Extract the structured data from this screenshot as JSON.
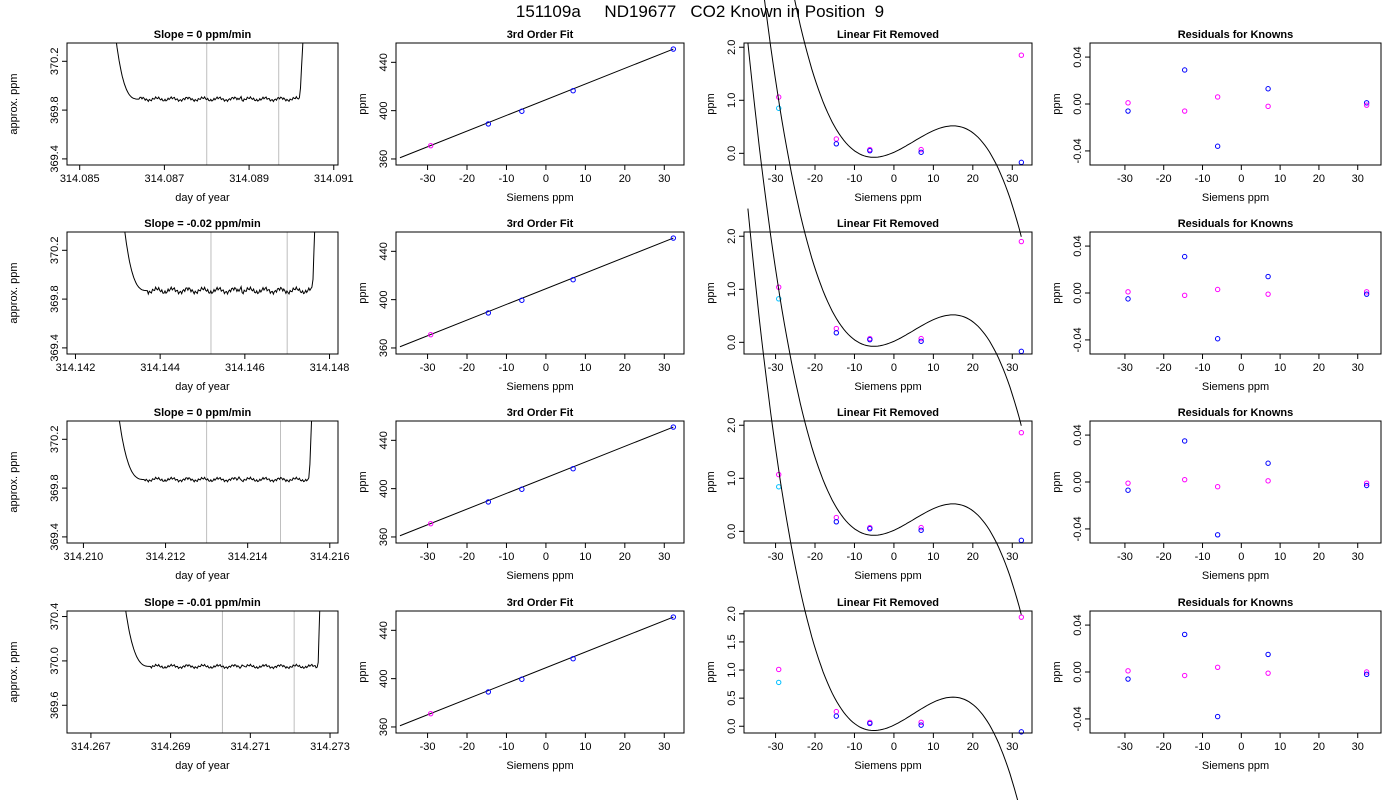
{
  "header": {
    "title": "151109a     ND19677   CO2 Known in Position  9"
  },
  "labels": {
    "trace_title_prefix": "Slope = ",
    "trace_title_suffix": "  ppm/min",
    "trace_xlabel": "day of year",
    "trace_ylabel": "approx. ppm",
    "fit_title": "3rd Order Fit",
    "fit_xlabel": "Siemens ppm",
    "fit_ylabel": "ppm",
    "lin_title": "Linear Fit Removed",
    "lin_xlabel": "Siemens ppm",
    "lin_ylabel": "ppm",
    "res_title": "Residuals for Knowns",
    "res_xlabel": "Siemens ppm",
    "res_ylabel": "ppm"
  },
  "colors": {
    "line": "#000000",
    "vline": "#bebebe",
    "blue": "#0000ff",
    "magenta": "#ff00ff",
    "cyan": "#00bfff"
  },
  "chart_data": [
    {
      "row": 0,
      "type": "line",
      "slope": "0",
      "xlim": [
        314.0847,
        314.0911
      ],
      "ylim": [
        369.35,
        370.35
      ],
      "xticks": [
        "314.085",
        "314.087",
        "314.089",
        "314.091"
      ],
      "yticks": [
        "369.4",
        "369.8",
        "370.2"
      ],
      "x_from": 314.0847,
      "x_to": 314.0911,
      "step_start": 314.0858,
      "step_end": 314.0902,
      "x_plateau_start": 314.0864,
      "plateau_level": 369.89,
      "plateau_noise": 0.02,
      "bump_x": 314.0888,
      "vlines": [
        314.088,
        314.0897
      ]
    },
    {
      "row": 1,
      "type": "line",
      "slope": "-0.02",
      "xlim": [
        314.1418,
        314.1482
      ],
      "ylim": [
        369.35,
        370.35
      ],
      "xticks": [
        "314.142",
        "314.144",
        "314.146",
        "314.148"
      ],
      "yticks": [
        "369.4",
        "369.8",
        "370.2"
      ],
      "x_from": 314.1418,
      "x_to": 314.1482,
      "step_start": 314.1431,
      "step_end": 314.1476,
      "x_plateau_start": 314.1437,
      "plateau_level": 369.87,
      "plateau_noise": 0.03,
      "bump_x": 314.1459,
      "vlines": [
        314.1452,
        314.147
      ]
    },
    {
      "row": 2,
      "type": "line",
      "slope": "0",
      "xlim": [
        314.2096,
        314.2162
      ],
      "ylim": [
        369.35,
        370.35
      ],
      "xticks": [
        "314.210",
        "314.212",
        "314.214",
        "314.216"
      ],
      "yticks": [
        "369.4",
        "369.8",
        "370.2"
      ],
      "x_from": 314.2096,
      "x_to": 314.2162,
      "step_start": 314.2108,
      "step_end": 314.2155,
      "x_plateau_start": 314.2115,
      "plateau_level": 369.87,
      "plateau_noise": 0.02,
      "bump_x": 314.2138,
      "vlines": [
        314.213,
        314.2148
      ]
    },
    {
      "row": 3,
      "type": "line",
      "slope": "-0.01",
      "xlim": [
        314.2664,
        314.2732
      ],
      "ylim": [
        369.35,
        370.45
      ],
      "xticks": [
        "314.267",
        "314.269",
        "314.271",
        "314.273"
      ],
      "yticks": [
        "369.6",
        "370.0",
        "370.4"
      ],
      "x_from": 314.2664,
      "x_to": 314.2732,
      "step_start": 314.2678,
      "step_end": 314.2727,
      "x_plateau_start": 314.2685,
      "plateau_level": 369.95,
      "plateau_noise": 0.02,
      "bump_x": 314.2708,
      "vlines": [
        314.2703,
        314.2721
      ]
    },
    {
      "row": 0,
      "type": "scatter_fit",
      "xlim": [
        -38,
        35
      ],
      "ylim": [
        355,
        456
      ],
      "xticks": [
        -30,
        -20,
        -10,
        0,
        10,
        20,
        30
      ],
      "yticks": [
        360,
        400,
        440
      ],
      "fit_line": {
        "x": [
          -37,
          32.3
        ],
        "y": [
          361,
          451
        ]
      },
      "points": [
        {
          "x": -29.2,
          "y": 371,
          "color": "magenta"
        },
        {
          "x": -14.6,
          "y": 389,
          "color": "blue"
        },
        {
          "x": -6.1,
          "y": 399.5,
          "color": "blue"
        },
        {
          "x": 6.9,
          "y": 416.5,
          "color": "blue"
        },
        {
          "x": 32.3,
          "y": 451,
          "color": "blue"
        }
      ]
    },
    {
      "row": 1,
      "type": "scatter_fit",
      "xlim": [
        -38,
        35
      ],
      "ylim": [
        355,
        456
      ],
      "xticks": [
        -30,
        -20,
        -10,
        0,
        10,
        20,
        30
      ],
      "yticks": [
        360,
        400,
        440
      ],
      "fit_line": {
        "x": [
          -37,
          32.3
        ],
        "y": [
          361,
          451
        ]
      },
      "points": [
        {
          "x": -29.2,
          "y": 371,
          "color": "magenta"
        },
        {
          "x": -14.6,
          "y": 389,
          "color": "blue"
        },
        {
          "x": -6.1,
          "y": 399.5,
          "color": "blue"
        },
        {
          "x": 6.9,
          "y": 416.5,
          "color": "blue"
        },
        {
          "x": 32.3,
          "y": 451,
          "color": "blue"
        }
      ]
    },
    {
      "row": 2,
      "type": "scatter_fit",
      "xlim": [
        -38,
        35
      ],
      "ylim": [
        355,
        456
      ],
      "xticks": [
        -30,
        -20,
        -10,
        0,
        10,
        20,
        30
      ],
      "yticks": [
        360,
        400,
        440
      ],
      "fit_line": {
        "x": [
          -37,
          32.3
        ],
        "y": [
          361,
          451
        ]
      },
      "points": [
        {
          "x": -29.2,
          "y": 371,
          "color": "magenta"
        },
        {
          "x": -14.6,
          "y": 389,
          "color": "blue"
        },
        {
          "x": -6.1,
          "y": 399.5,
          "color": "blue"
        },
        {
          "x": 6.9,
          "y": 416.5,
          "color": "blue"
        },
        {
          "x": 32.3,
          "y": 451,
          "color": "blue"
        }
      ]
    },
    {
      "row": 3,
      "type": "scatter_fit",
      "xlim": [
        -38,
        35
      ],
      "ylim": [
        355,
        456
      ],
      "xticks": [
        -30,
        -20,
        -10,
        0,
        10,
        20,
        30
      ],
      "yticks": [
        360,
        400,
        440
      ],
      "fit_line": {
        "x": [
          -37,
          32.3
        ],
        "y": [
          361,
          451
        ]
      },
      "points": [
        {
          "x": -29.2,
          "y": 371,
          "color": "magenta"
        },
        {
          "x": -14.6,
          "y": 389,
          "color": "blue"
        },
        {
          "x": -6.1,
          "y": 399.5,
          "color": "blue"
        },
        {
          "x": 6.9,
          "y": 416.5,
          "color": "blue"
        },
        {
          "x": 32.3,
          "y": 451,
          "color": "blue"
        }
      ]
    },
    {
      "row": 0,
      "type": "scatter_curve",
      "xlim": [
        -38,
        35
      ],
      "ylim": [
        -0.22,
        2.08
      ],
      "xticks": [
        -30,
        -20,
        -10,
        0,
        10,
        20,
        30
      ],
      "yticks": [
        0.0,
        1.0,
        2.0
      ],
      "curve_fn": "-0.000147x^3 + 0.00218x^2 + 0.0336x + 0.0196",
      "curve_x": [
        -37,
        32.3
      ],
      "curve_coef": [
        -0.000147,
        0.00218,
        0.0336,
        0.0196
      ],
      "points": [
        {
          "x": -29.2,
          "y": 1.06,
          "color": "magenta"
        },
        {
          "x": -29.2,
          "y": 0.85,
          "color": "cyan"
        },
        {
          "x": -14.6,
          "y": 0.27,
          "color": "magenta"
        },
        {
          "x": -14.6,
          "y": 0.18,
          "color": "blue"
        },
        {
          "x": -6.1,
          "y": 0.07,
          "color": "magenta"
        },
        {
          "x": -6.1,
          "y": 0.05,
          "color": "blue"
        },
        {
          "x": 6.9,
          "y": 0.07,
          "color": "magenta"
        },
        {
          "x": 6.9,
          "y": 0.02,
          "color": "blue"
        },
        {
          "x": 32.3,
          "y": 1.85,
          "color": "magenta"
        },
        {
          "x": 32.3,
          "y": -0.17,
          "color": "blue"
        }
      ]
    },
    {
      "row": 1,
      "type": "scatter_curve",
      "xlim": [
        -38,
        35
      ],
      "ylim": [
        -0.22,
        2.08
      ],
      "xticks": [
        -30,
        -20,
        -10,
        0,
        10,
        20,
        30
      ],
      "yticks": [
        0.0,
        1.0,
        2.0
      ],
      "curve_fn": "-0.000147x^3 + 0.00218x^2 + 0.0336x + 0.0196",
      "curve_x": [
        -37,
        32.3
      ],
      "curve_coef": [
        -0.000147,
        0.00218,
        0.0336,
        0.0196
      ],
      "points": [
        {
          "x": -29.2,
          "y": 1.04,
          "color": "magenta"
        },
        {
          "x": -29.2,
          "y": 0.82,
          "color": "cyan"
        },
        {
          "x": -14.6,
          "y": 0.26,
          "color": "magenta"
        },
        {
          "x": -14.6,
          "y": 0.18,
          "color": "blue"
        },
        {
          "x": -6.1,
          "y": 0.07,
          "color": "magenta"
        },
        {
          "x": -6.1,
          "y": 0.05,
          "color": "blue"
        },
        {
          "x": 6.9,
          "y": 0.07,
          "color": "magenta"
        },
        {
          "x": 6.9,
          "y": 0.02,
          "color": "blue"
        },
        {
          "x": 32.3,
          "y": 1.9,
          "color": "magenta"
        },
        {
          "x": 32.3,
          "y": -0.17,
          "color": "blue"
        }
      ]
    },
    {
      "row": 2,
      "type": "scatter_curve",
      "xlim": [
        -38,
        35
      ],
      "ylim": [
        -0.22,
        2.08
      ],
      "xticks": [
        -30,
        -20,
        -10,
        0,
        10,
        20,
        30
      ],
      "yticks": [
        0.0,
        1.0,
        2.0
      ],
      "curve_fn": "-0.000147x^3 + 0.00218x^2 + 0.0336x + 0.0196",
      "curve_x": [
        -37,
        32.3
      ],
      "curve_coef": [
        -0.000147,
        0.00218,
        0.0336,
        0.0196
      ],
      "points": [
        {
          "x": -29.2,
          "y": 1.07,
          "color": "magenta"
        },
        {
          "x": -29.2,
          "y": 0.84,
          "color": "cyan"
        },
        {
          "x": -14.6,
          "y": 0.26,
          "color": "magenta"
        },
        {
          "x": -14.6,
          "y": 0.18,
          "color": "blue"
        },
        {
          "x": -6.1,
          "y": 0.07,
          "color": "magenta"
        },
        {
          "x": -6.1,
          "y": 0.05,
          "color": "blue"
        },
        {
          "x": 6.9,
          "y": 0.07,
          "color": "magenta"
        },
        {
          "x": 6.9,
          "y": 0.02,
          "color": "blue"
        },
        {
          "x": 32.3,
          "y": 1.86,
          "color": "magenta"
        },
        {
          "x": 32.3,
          "y": -0.17,
          "color": "blue"
        }
      ]
    },
    {
      "row": 3,
      "type": "scatter_curve",
      "xlim": [
        -38,
        35
      ],
      "ylim": [
        -0.12,
        2.05
      ],
      "xticks": [
        -30,
        -20,
        -10,
        0,
        10,
        20,
        30
      ],
      "yticks": [
        0.0,
        0.5,
        1.0,
        1.5,
        2.0
      ],
      "curve_fn": "-0.000147x^3 + 0.00218x^2 + 0.0336x + 0.0196",
      "curve_x": [
        -37,
        32.3
      ],
      "curve_coef": [
        -0.000147,
        0.00218,
        0.0336,
        0.0196
      ],
      "points": [
        {
          "x": -29.2,
          "y": 1.01,
          "color": "magenta"
        },
        {
          "x": -29.2,
          "y": 0.78,
          "color": "cyan"
        },
        {
          "x": -14.6,
          "y": 0.26,
          "color": "magenta"
        },
        {
          "x": -14.6,
          "y": 0.18,
          "color": "blue"
        },
        {
          "x": -6.1,
          "y": 0.07,
          "color": "magenta"
        },
        {
          "x": -6.1,
          "y": 0.05,
          "color": "blue"
        },
        {
          "x": 6.9,
          "y": 0.07,
          "color": "magenta"
        },
        {
          "x": 6.9,
          "y": 0.02,
          "color": "blue"
        },
        {
          "x": 32.3,
          "y": 1.94,
          "color": "magenta"
        },
        {
          "x": 32.3,
          "y": -0.1,
          "color": "blue"
        }
      ]
    },
    {
      "row": 0,
      "type": "scatter",
      "xlim": [
        -39,
        36
      ],
      "ylim": [
        -0.052,
        0.052
      ],
      "xticks": [
        -30,
        -20,
        -10,
        0,
        10,
        20,
        30
      ],
      "yticks": [
        "-0.04",
        "0.00",
        "0.04"
      ],
      "points": [
        {
          "x": -29.2,
          "y": 0.001,
          "color": "magenta"
        },
        {
          "x": -29.2,
          "y": -0.006,
          "color": "blue"
        },
        {
          "x": -14.6,
          "y": 0.029,
          "color": "blue"
        },
        {
          "x": -14.6,
          "y": -0.006,
          "color": "magenta"
        },
        {
          "x": -6.1,
          "y": 0.006,
          "color": "magenta"
        },
        {
          "x": -6.1,
          "y": -0.036,
          "color": "blue"
        },
        {
          "x": 6.9,
          "y": 0.013,
          "color": "blue"
        },
        {
          "x": 6.9,
          "y": -0.002,
          "color": "magenta"
        },
        {
          "x": 32.3,
          "y": 0.001,
          "color": "blue"
        },
        {
          "x": 32.3,
          "y": -0.001,
          "color": "magenta"
        }
      ]
    },
    {
      "row": 1,
      "type": "scatter",
      "xlim": [
        -39,
        36
      ],
      "ylim": [
        -0.052,
        0.052
      ],
      "xticks": [
        -30,
        -20,
        -10,
        0,
        10,
        20,
        30
      ],
      "yticks": [
        "-0.04",
        "0.00",
        "0.04"
      ],
      "points": [
        {
          "x": -29.2,
          "y": 0.001,
          "color": "magenta"
        },
        {
          "x": -29.2,
          "y": -0.005,
          "color": "blue"
        },
        {
          "x": -14.6,
          "y": 0.031,
          "color": "blue"
        },
        {
          "x": -14.6,
          "y": -0.002,
          "color": "magenta"
        },
        {
          "x": -6.1,
          "y": 0.003,
          "color": "magenta"
        },
        {
          "x": -6.1,
          "y": -0.039,
          "color": "blue"
        },
        {
          "x": 6.9,
          "y": 0.014,
          "color": "blue"
        },
        {
          "x": 6.9,
          "y": -0.001,
          "color": "magenta"
        },
        {
          "x": 32.3,
          "y": 0.001,
          "color": "magenta"
        },
        {
          "x": 32.3,
          "y": -0.001,
          "color": "blue"
        }
      ]
    },
    {
      "row": 2,
      "type": "scatter",
      "xlim": [
        -39,
        36
      ],
      "ylim": [
        -0.052,
        0.052
      ],
      "xticks": [
        -30,
        -20,
        -10,
        0,
        10,
        20,
        30
      ],
      "yticks": [
        "-0.04",
        "0.00",
        "0.04"
      ],
      "points": [
        {
          "x": -29.2,
          "y": -0.001,
          "color": "magenta"
        },
        {
          "x": -29.2,
          "y": -0.007,
          "color": "blue"
        },
        {
          "x": -14.6,
          "y": 0.035,
          "color": "blue"
        },
        {
          "x": -14.6,
          "y": 0.002,
          "color": "magenta"
        },
        {
          "x": -6.1,
          "y": -0.004,
          "color": "magenta"
        },
        {
          "x": -6.1,
          "y": -0.045,
          "color": "blue"
        },
        {
          "x": 6.9,
          "y": 0.016,
          "color": "blue"
        },
        {
          "x": 6.9,
          "y": 0.001,
          "color": "magenta"
        },
        {
          "x": 32.3,
          "y": -0.001,
          "color": "magenta"
        },
        {
          "x": 32.3,
          "y": -0.003,
          "color": "blue"
        }
      ]
    },
    {
      "row": 3,
      "type": "scatter",
      "xlim": [
        -39,
        36
      ],
      "ylim": [
        -0.052,
        0.052
      ],
      "xticks": [
        -30,
        -20,
        -10,
        0,
        10,
        20,
        30
      ],
      "yticks": [
        "-0.04",
        "0.00",
        "0.04"
      ],
      "points": [
        {
          "x": -29.2,
          "y": 0.001,
          "color": "magenta"
        },
        {
          "x": -29.2,
          "y": -0.006,
          "color": "blue"
        },
        {
          "x": -14.6,
          "y": 0.032,
          "color": "blue"
        },
        {
          "x": -14.6,
          "y": -0.003,
          "color": "magenta"
        },
        {
          "x": -6.1,
          "y": 0.004,
          "color": "magenta"
        },
        {
          "x": -6.1,
          "y": -0.038,
          "color": "blue"
        },
        {
          "x": 6.9,
          "y": 0.015,
          "color": "blue"
        },
        {
          "x": 6.9,
          "y": -0.001,
          "color": "magenta"
        },
        {
          "x": 32.3,
          "y": 0.0,
          "color": "magenta"
        },
        {
          "x": 32.3,
          "y": -0.002,
          "color": "blue"
        }
      ]
    }
  ]
}
